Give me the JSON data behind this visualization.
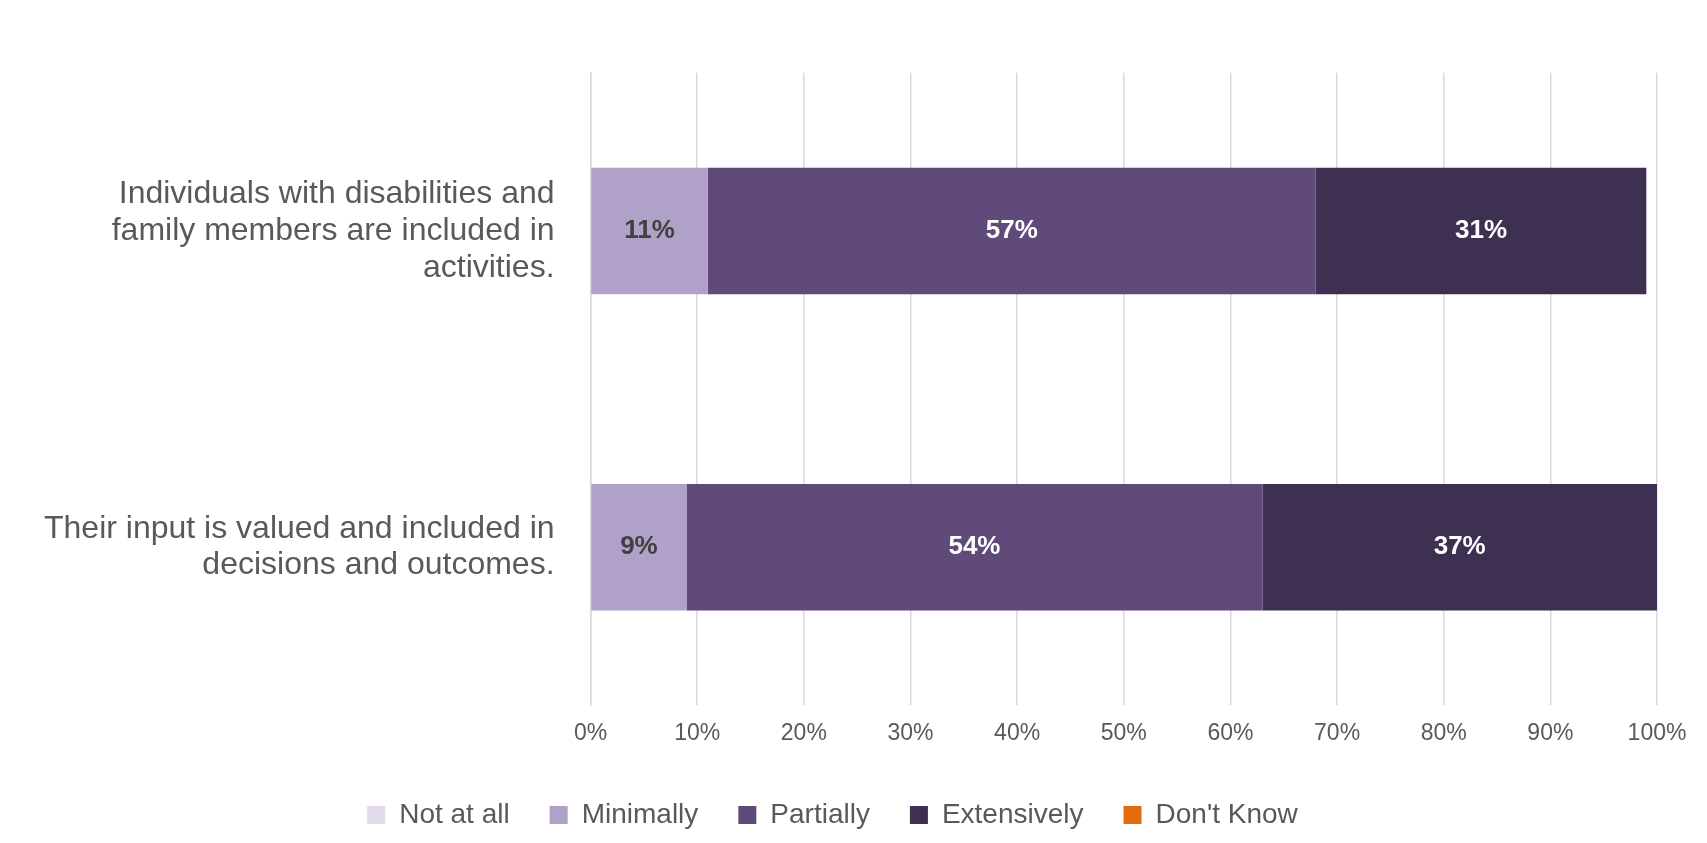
{
  "chart_data": {
    "type": "bar",
    "orientation": "horizontal",
    "stacked": true,
    "categories": [
      "Individuals with disabilities and family members are included in activities.",
      "Their input is valued and included in decisions and outcomes."
    ],
    "series": [
      {
        "name": "Not at all",
        "color": "#e2dcea",
        "values": [
          0,
          0
        ],
        "value_labels": [
          null,
          null
        ]
      },
      {
        "name": "Minimally",
        "color": "#b0a1c8",
        "values": [
          11,
          9
        ],
        "value_labels": [
          "11%",
          "9%"
        ]
      },
      {
        "name": "Partially",
        "color": "#5f4a7a",
        "values": [
          57,
          54
        ],
        "value_labels": [
          "57%",
          "54%"
        ]
      },
      {
        "name": "Extensively",
        "color": "#3e3050",
        "values": [
          31,
          37
        ],
        "value_labels": [
          "31%",
          "37%"
        ]
      },
      {
        "name": "Don't Know",
        "color": "#e36c0a",
        "values": [
          0,
          0
        ],
        "value_labels": [
          null,
          null
        ]
      }
    ],
    "xlim": [
      0,
      100
    ],
    "xticks": [
      {
        "value": 0,
        "label": "0%"
      },
      {
        "value": 10,
        "label": "10%"
      },
      {
        "value": 20,
        "label": "20%"
      },
      {
        "value": 30,
        "label": "30%"
      },
      {
        "value": 40,
        "label": "40%"
      },
      {
        "value": 50,
        "label": "50%"
      },
      {
        "value": 60,
        "label": "60%"
      },
      {
        "value": 70,
        "label": "70%"
      },
      {
        "value": 80,
        "label": "80%"
      },
      {
        "value": 90,
        "label": "90%"
      },
      {
        "value": 100,
        "label": "100%"
      }
    ],
    "grid": "x",
    "legend": "bottom"
  }
}
